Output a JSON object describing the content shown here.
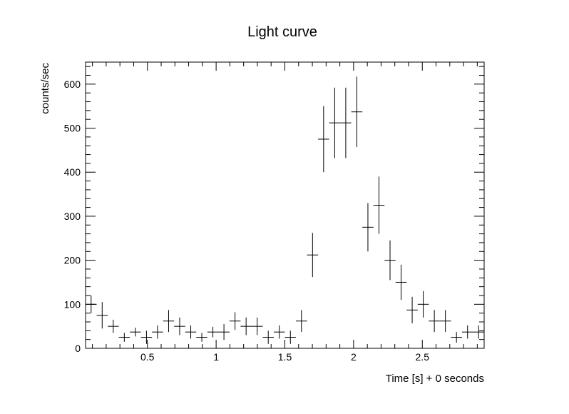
{
  "chart_data": {
    "type": "scatter",
    "style": "histogram-with-error-bars",
    "title": "Light curve",
    "xlabel": "Time [s] + 0 seconds",
    "ylabel": "counts/sec",
    "xlim": [
      0.05,
      2.95
    ],
    "ylim": [
      0,
      650
    ],
    "x_ticks": [
      0.5,
      1,
      1.5,
      2,
      2.5
    ],
    "x_tick_labels": [
      "0.5",
      "1",
      "1.5",
      "2",
      "2.5"
    ],
    "y_ticks": [
      0,
      100,
      200,
      300,
      400,
      500,
      600
    ],
    "y_tick_labels": [
      "0",
      "100",
      "200",
      "300",
      "400",
      "500",
      "600"
    ],
    "bin_width": 0.0806,
    "grid": false,
    "series": [
      {
        "x": [
          0.0903,
          0.1708,
          0.2514,
          0.3319,
          0.4125,
          0.4931,
          0.5736,
          0.6542,
          0.7347,
          0.8153,
          0.8958,
          0.9764,
          1.0569,
          1.1375,
          1.2181,
          1.2986,
          1.3792,
          1.4597,
          1.5403,
          1.6208,
          1.7014,
          1.7819,
          1.8625,
          1.9431,
          2.0236,
          2.1042,
          2.1847,
          2.2653,
          2.3458,
          2.4264,
          2.5069,
          2.5875,
          2.6681,
          2.7486,
          2.8292,
          2.9097
        ],
        "values": [
          100,
          75,
          50,
          25,
          37,
          25,
          37,
          62,
          50,
          37,
          25,
          37,
          37,
          62,
          50,
          50,
          25,
          37,
          25,
          62,
          212,
          475,
          512,
          512,
          537,
          275,
          325,
          200,
          150,
          87,
          100,
          62,
          62,
          25,
          37,
          37
        ],
        "errors": [
          20,
          30,
          15,
          10,
          10,
          15,
          15,
          25,
          20,
          15,
          10,
          12,
          18,
          20,
          20,
          20,
          15,
          15,
          15,
          25,
          50,
          75,
          80,
          80,
          80,
          55,
          65,
          45,
          40,
          30,
          30,
          25,
          25,
          12,
          15,
          15
        ]
      }
    ]
  }
}
